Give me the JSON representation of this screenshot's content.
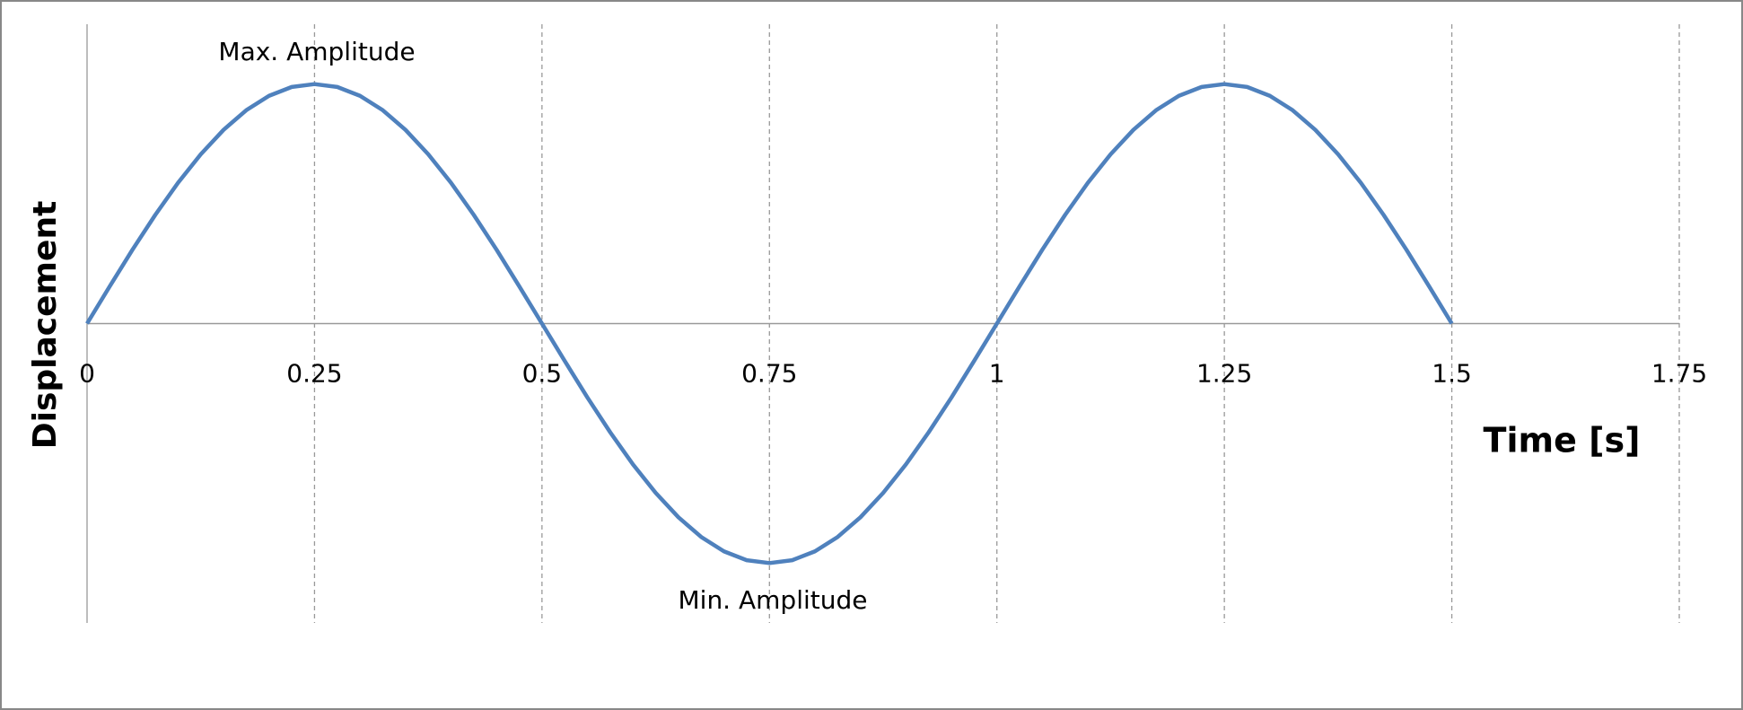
{
  "chart_data": {
    "type": "line",
    "x_label": "Time [s]",
    "y_label": "Displacement",
    "annotations": [
      "Max. Amplitude",
      "Min. Amplitude"
    ],
    "x": [
      0,
      0.025,
      0.05,
      0.075,
      0.1,
      0.125,
      0.15,
      0.175,
      0.2,
      0.225,
      0.25,
      0.275,
      0.3,
      0.325,
      0.35,
      0.375,
      0.4,
      0.425,
      0.45,
      0.475,
      0.5,
      0.525,
      0.55,
      0.575,
      0.6,
      0.625,
      0.65,
      0.675,
      0.7,
      0.725,
      0.75,
      0.775,
      0.8,
      0.825,
      0.85,
      0.875,
      0.9,
      0.925,
      0.95,
      0.975,
      1,
      1.025,
      1.05,
      1.075,
      1.1,
      1.125,
      1.15,
      1.175,
      1.2,
      1.225,
      1.25,
      1.275,
      1.3,
      1.325,
      1.35,
      1.375,
      1.4,
      1.425,
      1.45,
      1.475,
      1.5
    ],
    "series": [
      {
        "color": "#4f81bd",
        "values": [
          0,
          0.156,
          0.309,
          0.454,
          0.588,
          0.707,
          0.809,
          0.891,
          0.951,
          0.988,
          1,
          0.988,
          0.951,
          0.891,
          0.809,
          0.707,
          0.588,
          0.454,
          0.309,
          0.156,
          0,
          -0.156,
          -0.309,
          -0.454,
          -0.588,
          -0.707,
          -0.809,
          -0.891,
          -0.951,
          -0.988,
          -1,
          -0.988,
          -0.951,
          -0.891,
          -0.809,
          -0.707,
          -0.588,
          -0.454,
          -0.309,
          -0.156,
          0,
          0.156,
          0.309,
          0.454,
          0.588,
          0.707,
          0.809,
          0.891,
          0.951,
          0.988,
          1,
          0.988,
          0.951,
          0.891,
          0.809,
          0.707,
          0.588,
          0.454,
          0.309,
          0.156,
          0
        ]
      }
    ],
    "xlim": [
      0,
      1.75
    ],
    "xticks": [
      0,
      0.25,
      0.5,
      0.75,
      1,
      1.25,
      1.5,
      1.75
    ],
    "ylim": [
      -1.25,
      1.25
    ],
    "grid": true
  }
}
